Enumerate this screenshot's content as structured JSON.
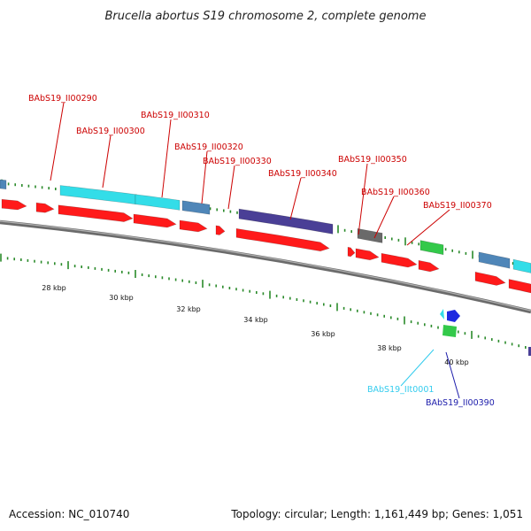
{
  "title": "Brucella abortus S19 chromosome 2, complete genome",
  "footer": {
    "accession_label": "Accession: NC_010740",
    "topology_label": "Topology: circular; Length: 1,161,449 bp; Genes: 1,051"
  },
  "scale": {
    "tick_labels": [
      "28 kbp",
      "30 kbp",
      "32 kbp",
      "34 kbp",
      "36 kbp",
      "38 kbp",
      "40 kbp"
    ]
  },
  "colors": {
    "forward_cds": "#ff1a1a",
    "hypothetical": "#33dde8",
    "steel_blue": "#4f86b8",
    "indigo": "#4a3f96",
    "grey": "#6a6a6a",
    "green": "#33c94a",
    "blue": "#1f2ae0",
    "backbone": "#8a8a8a",
    "tick": "#2a8a2a",
    "label_red": "#cc0000",
    "label_cyan": "#33ccee",
    "label_blue": "#1a1aaa"
  },
  "gene_labels": [
    {
      "name": "BAbS19_II00290",
      "color": "label_red"
    },
    {
      "name": "BAbS19_II00300",
      "color": "label_red"
    },
    {
      "name": "BAbS19_II00310",
      "color": "label_red"
    },
    {
      "name": "BAbS19_II00320",
      "color": "label_red"
    },
    {
      "name": "BAbS19_II00330",
      "color": "label_red"
    },
    {
      "name": "BAbS19_II00340",
      "color": "label_red"
    },
    {
      "name": "BAbS19_II00350",
      "color": "label_red"
    },
    {
      "name": "BAbS19_II00360",
      "color": "label_red"
    },
    {
      "name": "BAbS19_II00370",
      "color": "label_red"
    },
    {
      "name": "BAbS19_IIt0001",
      "color": "label_cyan"
    },
    {
      "name": "BAbS19_II00390",
      "color": "label_blue"
    }
  ]
}
